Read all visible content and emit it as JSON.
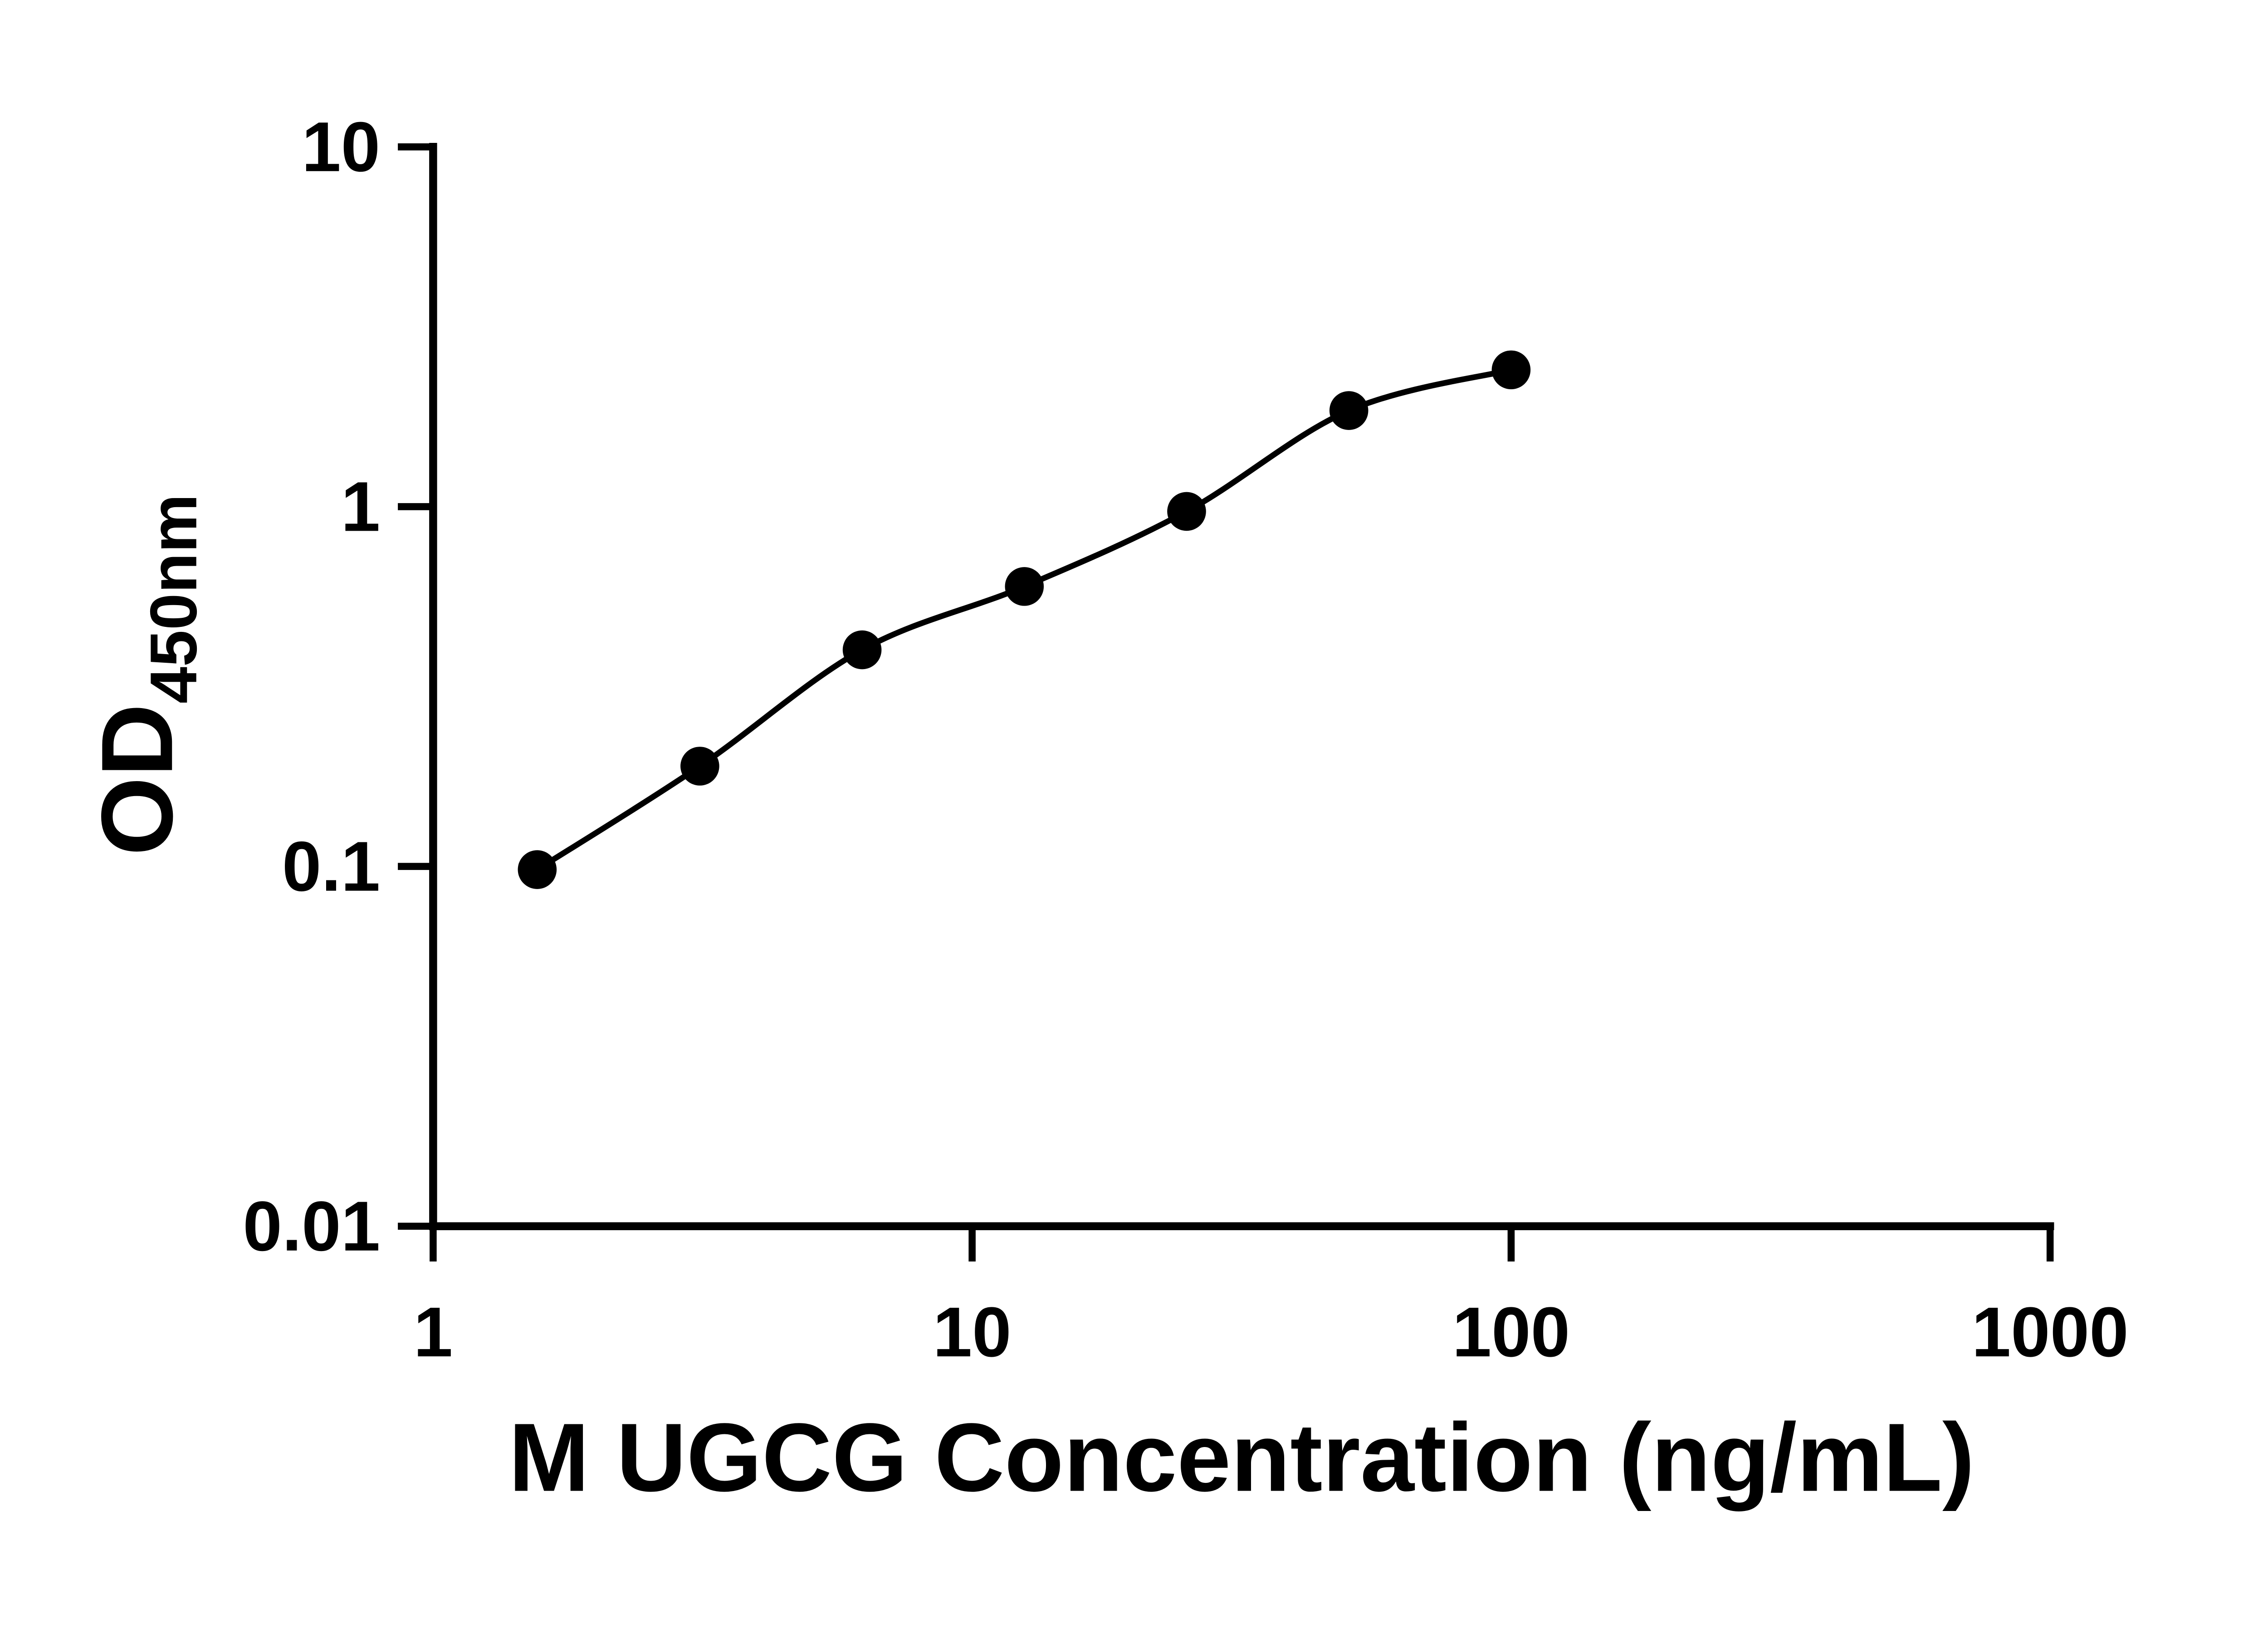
{
  "page": {
    "background": "#ffffff"
  },
  "chart_data": {
    "type": "scatter",
    "subtype": "log-log standard curve with smooth fit line",
    "title": "",
    "xlabel": "M UGCG Concentration (ng/mL)",
    "ylabel_main": "OD",
    "ylabel_sub": "450nm",
    "x_scale": "log",
    "y_scale": "log",
    "xlim": [
      1,
      1000
    ],
    "ylim": [
      0.01,
      10
    ],
    "x_ticks": [
      1,
      10,
      100,
      1000
    ],
    "x_tick_labels": [
      "1",
      "10",
      "100",
      "1000"
    ],
    "y_ticks": [
      0.01,
      0.1,
      1,
      10
    ],
    "y_tick_labels": [
      "0.01",
      "0.1",
      "1",
      "10"
    ],
    "points": [
      {
        "x": 1.56,
        "y": 0.098
      },
      {
        "x": 3.125,
        "y": 0.19
      },
      {
        "x": 6.25,
        "y": 0.4
      },
      {
        "x": 12.5,
        "y": 0.6
      },
      {
        "x": 25,
        "y": 0.97
      },
      {
        "x": 50,
        "y": 1.85
      },
      {
        "x": 100,
        "y": 2.4
      }
    ],
    "grid": false,
    "legend": false,
    "marker_color": "#000000",
    "line_color": "#000000",
    "axis_color": "#000000",
    "background": "#ffffff"
  }
}
